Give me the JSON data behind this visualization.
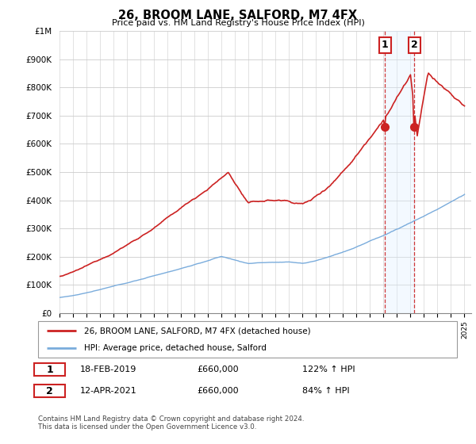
{
  "title": "26, BROOM LANE, SALFORD, M7 4FX",
  "subtitle": "Price paid vs. HM Land Registry's House Price Index (HPI)",
  "legend_line1": "26, BROOM LANE, SALFORD, M7 4FX (detached house)",
  "legend_line2": "HPI: Average price, detached house, Salford",
  "sale1_date": "18-FEB-2019",
  "sale1_price": "£660,000",
  "sale1_hpi": "122% ↑ HPI",
  "sale1_year": 2019.12,
  "sale1_value": 660000,
  "sale2_date": "12-APR-2021",
  "sale2_price": "£660,000",
  "sale2_hpi": "84% ↑ HPI",
  "sale2_year": 2021.28,
  "sale2_value": 660000,
  "footer": "Contains HM Land Registry data © Crown copyright and database right 2024.\nThis data is licensed under the Open Government Licence v3.0.",
  "red_color": "#cc2222",
  "blue_color": "#7aacdc",
  "shade_color": "#ddeeff",
  "grid_color": "#cccccc",
  "box_edge_color": "#cc2222",
  "ylim": [
    0,
    1000000
  ],
  "xlim_start": 1995,
  "xlim_end": 2025.5
}
